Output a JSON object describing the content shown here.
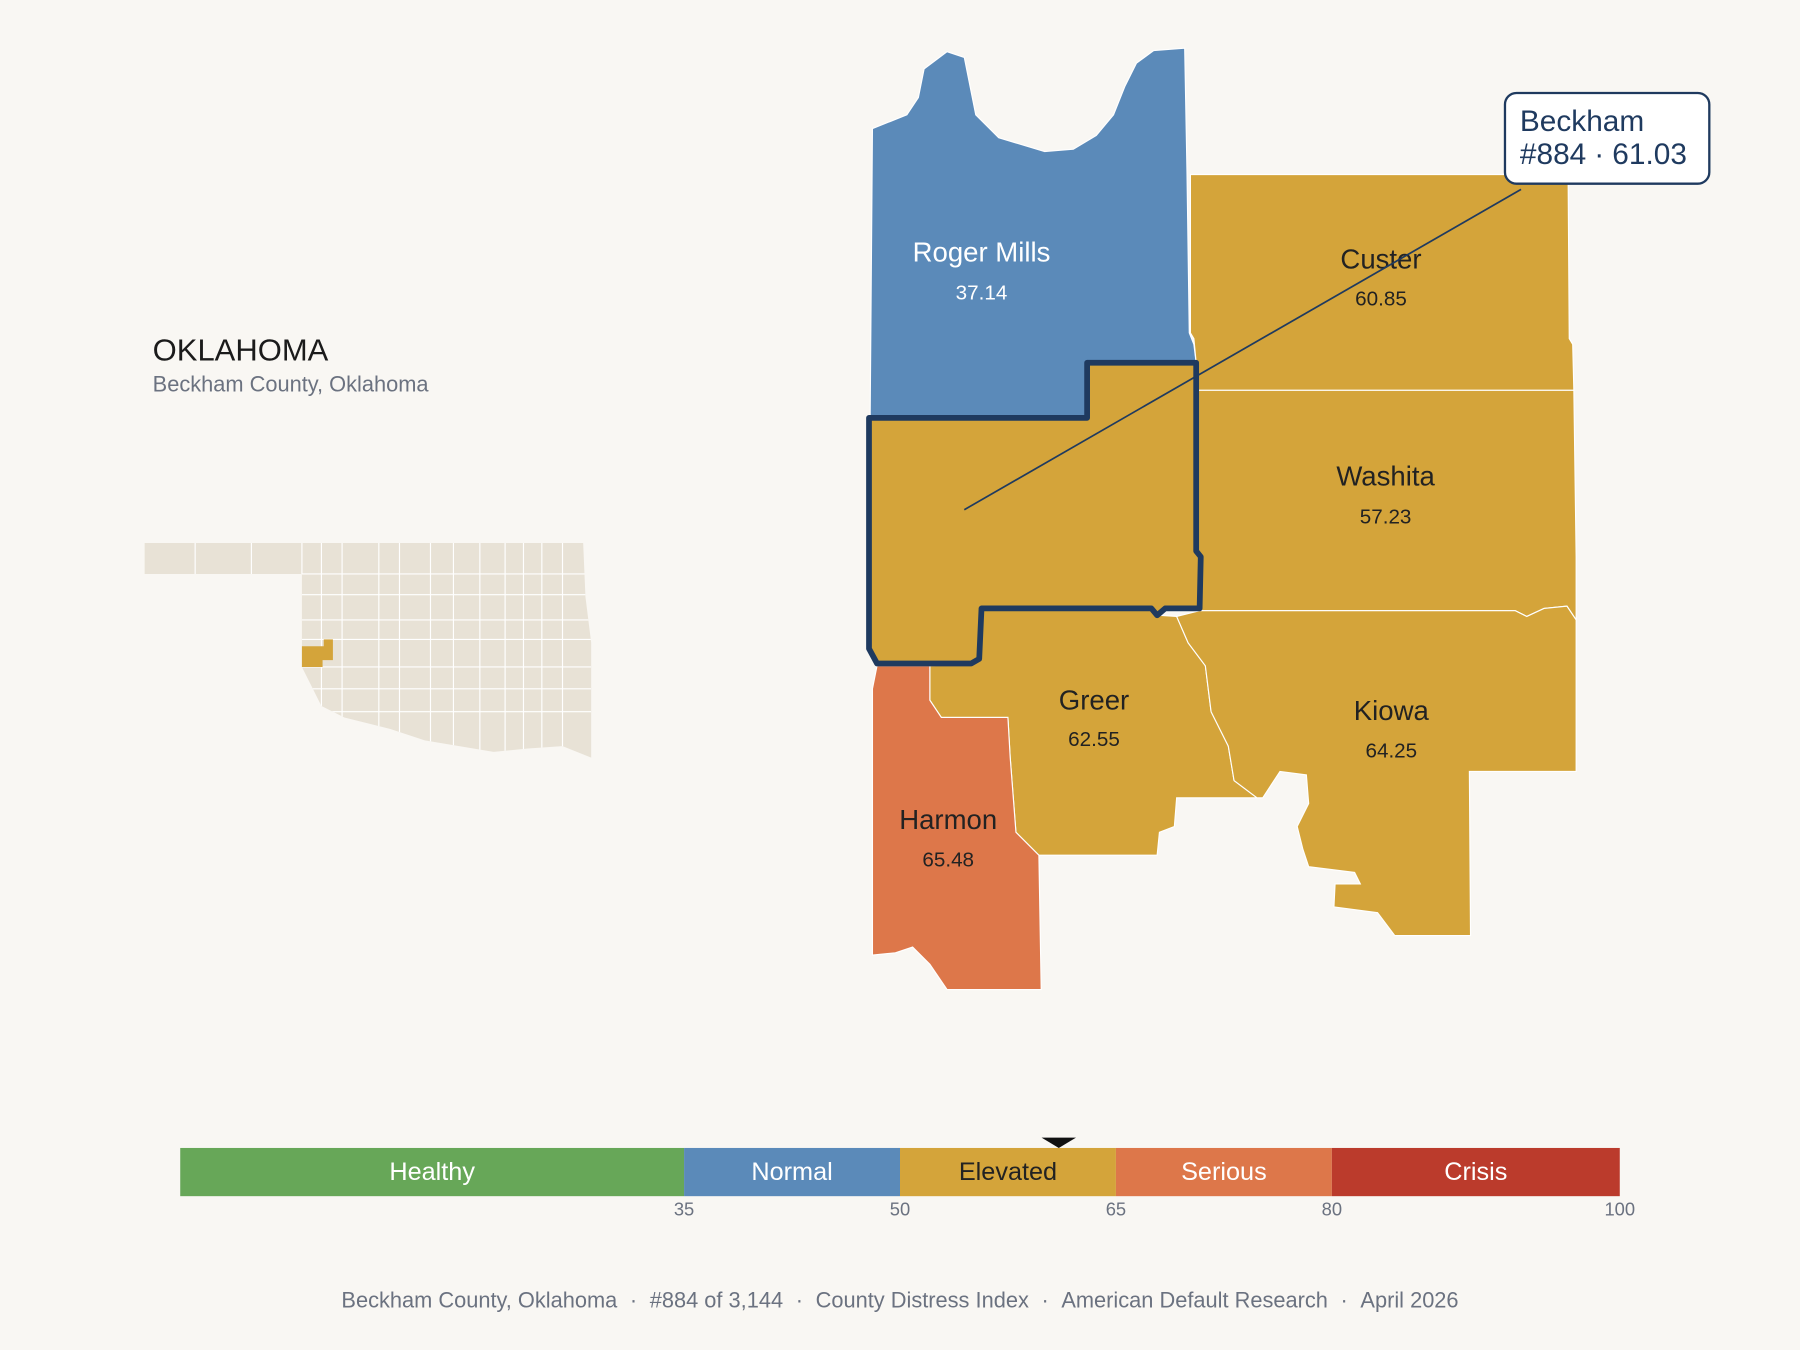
{
  "header": {
    "title": "OKLAHOMA",
    "subtitle": "Beckham County, Oklahoma"
  },
  "selected": {
    "name": "Beckham",
    "rank": "#884",
    "value": 61.03,
    "color": "#d4a43a"
  },
  "separator": "·",
  "counties": [
    {
      "name": "Roger Mills",
      "value": 37.14,
      "color": "#5b8ab9"
    },
    {
      "name": "Custer",
      "value": 60.85,
      "color": "#d4a43a"
    },
    {
      "name": "Washita",
      "value": 57.23,
      "color": "#d4a43a"
    },
    {
      "name": "Greer",
      "value": 62.55,
      "color": "#d4a43a"
    },
    {
      "name": "Kiowa",
      "value": 64.25,
      "color": "#d4a43a"
    },
    {
      "name": "Harmon",
      "value": 65.48,
      "color": "#dd774a"
    }
  ],
  "scale": {
    "lim": [
      0,
      100
    ],
    "ticks": [
      35,
      50,
      65,
      80,
      100
    ],
    "bands": [
      {
        "label": "Healthy",
        "color": "#67a758"
      },
      {
        "label": "Normal",
        "color": "#5b8ab9"
      },
      {
        "label": "Elevated",
        "color": "#d4a43a"
      },
      {
        "label": "Serious",
        "color": "#dd774a"
      },
      {
        "label": "Crisis",
        "color": "#bb3b2c"
      }
    ]
  },
  "footer": [
    "Beckham County, Oklahoma",
    "#884 of 3,144",
    "County Distress Index",
    "American Default Research",
    "April 2026"
  ]
}
